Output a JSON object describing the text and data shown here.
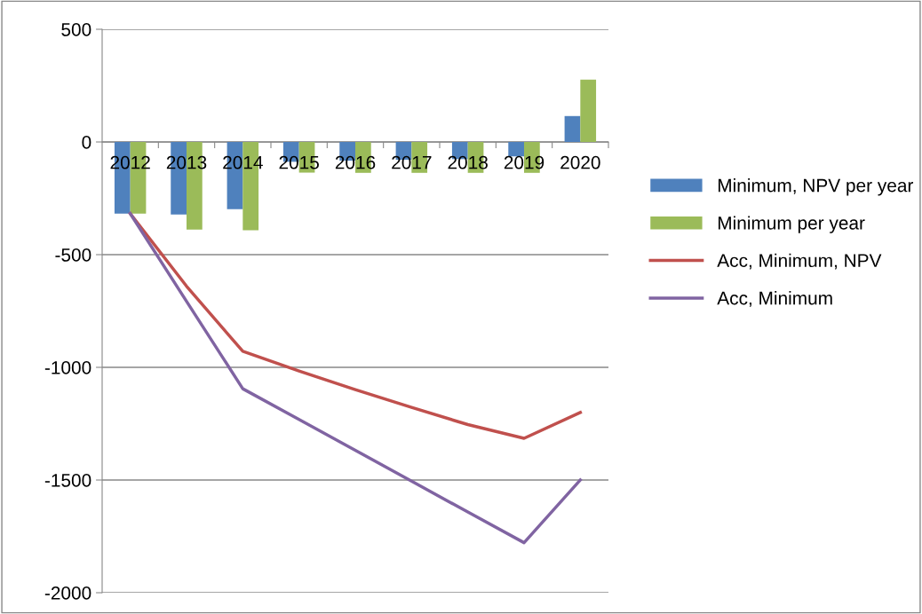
{
  "chart_data": {
    "type": "bar",
    "categories": [
      "2012",
      "2013",
      "2014",
      "2015",
      "2016",
      "2017",
      "2018",
      "2019",
      "2020"
    ],
    "series": [
      {
        "name": "Minimum, NPV per year",
        "color": "#4f81bd",
        "values": [
          -318,
          -322,
          -298,
          -88,
          -83,
          -79,
          -76,
          -64,
          115
        ]
      },
      {
        "name": "Minimum per year",
        "color": "#9bbb59",
        "values": [
          -318,
          -389,
          -392,
          -136,
          -137,
          -137,
          -137,
          -137,
          277
        ]
      },
      {
        "name": "Acc, Minimum, NPV",
        "type": "line",
        "color": "#c0504d",
        "values": [
          -318,
          -640,
          -929,
          -1016,
          -1099,
          -1178,
          -1254,
          -1315,
          -1200
        ]
      },
      {
        "name": "Acc, Minimum",
        "type": "line",
        "color": "#8064a2",
        "values": [
          -318,
          -707,
          -1095,
          -1231,
          -1368,
          -1505,
          -1642,
          -1778,
          -1500
        ]
      }
    ],
    "ylim": [
      -2000,
      500
    ],
    "yticks": [
      -2000,
      -1500,
      -1000,
      -500,
      0,
      500
    ],
    "grid": "y",
    "legend": "right"
  }
}
